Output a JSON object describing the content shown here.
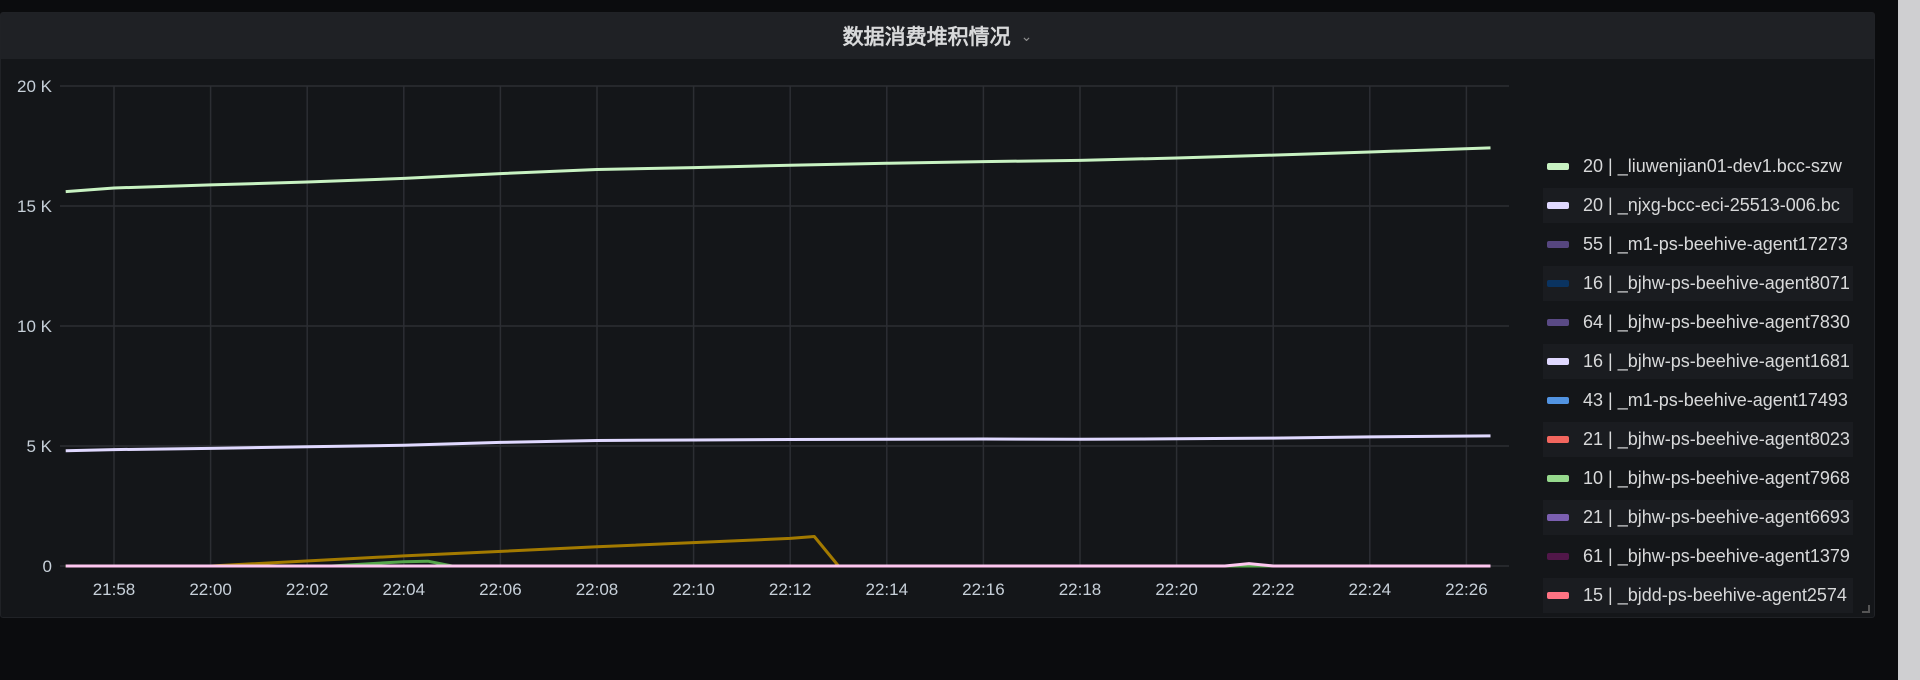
{
  "panel": {
    "title": "数据消费堆积情况",
    "menu_icon": "chevron-down-icon"
  },
  "chart_data": {
    "type": "line",
    "title": "数据消费堆积情况",
    "xlabel": "",
    "ylabel": "",
    "ylim": [
      0,
      20000
    ],
    "xlim": [
      "21:57",
      "22:26:30"
    ],
    "y_ticks": [
      "0",
      "5 K",
      "10 K",
      "15 K",
      "20 K"
    ],
    "y_tick_values": [
      0,
      5000,
      10000,
      15000,
      20000
    ],
    "x_ticks": [
      "21:58",
      "22:00",
      "22:02",
      "22:04",
      "22:06",
      "22:08",
      "22:10",
      "22:12",
      "22:14",
      "22:16",
      "22:18",
      "22:20",
      "22:22",
      "22:24",
      "22:26"
    ],
    "grid": true,
    "legend_placement": "right",
    "series": [
      {
        "name": "20 | _liuwenjian01-dev1.bcc-szw",
        "color": "#c8f2c2",
        "x": [
          "21:57",
          "21:58",
          "22:00",
          "22:02",
          "22:04",
          "22:06",
          "22:08",
          "22:10",
          "22:12",
          "22:14",
          "22:16",
          "22:18",
          "22:20",
          "22:22",
          "22:24",
          "22:26:30"
        ],
        "y": [
          15600,
          15750,
          15880,
          16000,
          16150,
          16350,
          16520,
          16600,
          16700,
          16780,
          16850,
          16900,
          17000,
          17120,
          17250,
          17420
        ]
      },
      {
        "name": "20 | _njxg-bcc-eci-25513-006.bc",
        "color": "#e0d9ff",
        "x": [
          "21:57",
          "21:58",
          "22:00",
          "22:02",
          "22:04",
          "22:06",
          "22:08",
          "22:10",
          "22:12",
          "22:14",
          "22:16",
          "22:18",
          "22:20",
          "22:22",
          "22:24",
          "22:26:30"
        ],
        "y": [
          4800,
          4850,
          4900,
          4970,
          5030,
          5150,
          5230,
          5250,
          5270,
          5280,
          5290,
          5280,
          5300,
          5330,
          5380,
          5420
        ]
      },
      {
        "color": "#a37a00",
        "x": [
          "21:57",
          "22:00",
          "22:04",
          "22:08",
          "22:12",
          "22:12:30",
          "22:13",
          "22:26:30"
        ],
        "y": [
          0,
          0,
          420,
          800,
          1150,
          1230,
          0,
          0
        ]
      },
      {
        "color": "#56a64b",
        "x": [
          "21:57",
          "22:02:30",
          "22:04",
          "22:04:30",
          "22:05",
          "22:26:30"
        ],
        "y": [
          0,
          0,
          180,
          200,
          0,
          0
        ]
      },
      {
        "color": "#ffc7f0",
        "x": [
          "21:57",
          "22:21",
          "22:21:30",
          "22:22",
          "22:26:30"
        ],
        "y": [
          0,
          0,
          100,
          0,
          0
        ]
      }
    ]
  },
  "legend": [
    {
      "label": "20 | _liuwenjian01-dev1.bcc-szw",
      "color": "#c8f2c2"
    },
    {
      "label": "20 | _njxg-bcc-eci-25513-006.bc",
      "color": "#e0d9ff"
    },
    {
      "label": "55 | _m1-ps-beehive-agent17273",
      "color": "#56467f"
    },
    {
      "label": "16 | _bjhw-ps-beehive-agent8071",
      "color": "#0a3360"
    },
    {
      "label": "64 | _bjhw-ps-beehive-agent7830",
      "color": "#5a4a85"
    },
    {
      "label": "16 | _bjhw-ps-beehive-agent1681",
      "color": "#e0d9ff"
    },
    {
      "label": "43 | _m1-ps-beehive-agent17493",
      "color": "#5294e2"
    },
    {
      "label": "21 | _bjhw-ps-beehive-agent8023",
      "color": "#f2665e"
    },
    {
      "label": "10 | _bjhw-ps-beehive-agent7968",
      "color": "#96d98d"
    },
    {
      "label": "21 | _bjhw-ps-beehive-agent6693",
      "color": "#7b5fb0"
    },
    {
      "label": "61 | _bjhw-ps-beehive-agent1379",
      "color": "#511749"
    },
    {
      "label": "15 | _bjdd-ps-beehive-agent2574",
      "color": "#ff7383"
    }
  ]
}
